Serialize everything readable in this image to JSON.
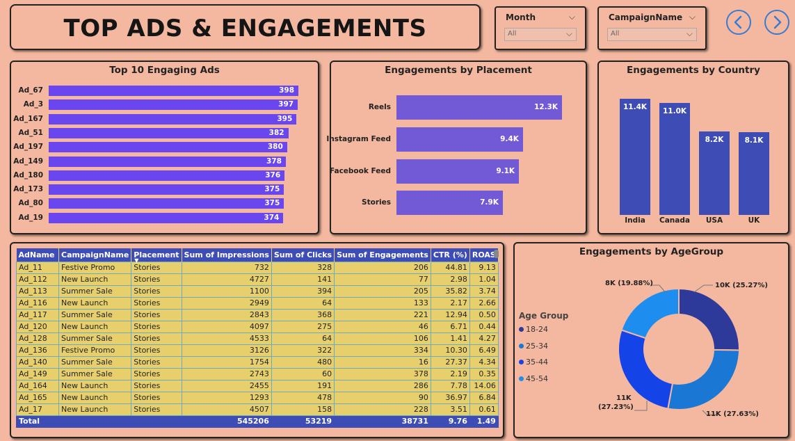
{
  "header": {
    "title": "TOP ADS & ENGAGEMENTS"
  },
  "slicers": {
    "month": {
      "label": "Month",
      "value": "All"
    },
    "campaign": {
      "label": "CampaignName",
      "value": "All"
    }
  },
  "nav": {
    "back_icon": "chevron-left-icon",
    "forward_icon": "chevron-right-icon",
    "accent": "#3a7ad0"
  },
  "top_ads": {
    "title": "Top 10 Engaging Ads",
    "color": "#6a46ee",
    "items": [
      {
        "label": "Ad_67",
        "value": "398"
      },
      {
        "label": "Ad_3",
        "value": "397"
      },
      {
        "label": "Ad_167",
        "value": "395"
      },
      {
        "label": "Ad_51",
        "value": "382"
      },
      {
        "label": "Ad_197",
        "value": "380"
      },
      {
        "label": "Ad_149",
        "value": "378"
      },
      {
        "label": "Ad_180",
        "value": "376"
      },
      {
        "label": "Ad_173",
        "value": "375"
      },
      {
        "label": "Ad_80",
        "value": "375"
      },
      {
        "label": "Ad_19",
        "value": "374"
      }
    ]
  },
  "placement": {
    "title": "Engagements by Placement",
    "items": [
      {
        "label": "Reels",
        "value": "12.3K"
      },
      {
        "label": "Instagram Feed",
        "value": "9.4K"
      },
      {
        "label": "Facebook Feed",
        "value": "9.1K"
      },
      {
        "label": "Stories",
        "value": "7.9K"
      }
    ]
  },
  "country": {
    "title": "Engagements by Country",
    "items": [
      {
        "label": "India",
        "value": "11.4K"
      },
      {
        "label": "Canada",
        "value": "11.0K"
      },
      {
        "label": "USA",
        "value": "8.2K"
      },
      {
        "label": "UK",
        "value": "8.1K"
      }
    ]
  },
  "table": {
    "sort_icon": "sort-down-icon",
    "columns": [
      "AdName",
      "CampaignName",
      "Placement",
      "Sum of Impressions",
      "Sum of Clicks",
      "Sum of Engagements",
      "CTR (%)",
      "ROAS"
    ],
    "rows": [
      [
        "Ad_11",
        "Festive Promo",
        "Stories",
        "732",
        "328",
        "206",
        "44.81",
        "9.13"
      ],
      [
        "Ad_112",
        "New Launch",
        "Stories",
        "4727",
        "141",
        "77",
        "2.98",
        "1.04"
      ],
      [
        "Ad_113",
        "Summer Sale",
        "Stories",
        "1100",
        "394",
        "205",
        "35.82",
        "3.74"
      ],
      [
        "Ad_116",
        "New Launch",
        "Stories",
        "2949",
        "64",
        "133",
        "2.17",
        "2.66"
      ],
      [
        "Ad_117",
        "Summer Sale",
        "Stories",
        "2843",
        "368",
        "221",
        "12.94",
        "0.50"
      ],
      [
        "Ad_120",
        "New Launch",
        "Stories",
        "4097",
        "275",
        "46",
        "6.71",
        "0.44"
      ],
      [
        "Ad_128",
        "Summer Sale",
        "Stories",
        "4533",
        "64",
        "106",
        "1.41",
        "4.27"
      ],
      [
        "Ad_136",
        "Festive Promo",
        "Stories",
        "3126",
        "322",
        "334",
        "10.30",
        "6.49"
      ],
      [
        "Ad_140",
        "Summer Sale",
        "Stories",
        "1754",
        "480",
        "16",
        "27.37",
        "4.34"
      ],
      [
        "Ad_149",
        "Summer Sale",
        "Stories",
        "2743",
        "60",
        "378",
        "2.19",
        "0.35"
      ],
      [
        "Ad_164",
        "New Launch",
        "Stories",
        "2455",
        "191",
        "286",
        "7.78",
        "14.06"
      ],
      [
        "Ad_165",
        "New Launch",
        "Stories",
        "1293",
        "478",
        "90",
        "36.97",
        "6.84"
      ],
      [
        "Ad_17",
        "New Launch",
        "Stories",
        "4507",
        "158",
        "228",
        "3.51",
        "0.61"
      ]
    ],
    "total": [
      "Total",
      "",
      "",
      "545206",
      "53219",
      "38731",
      "9.76",
      "1.49"
    ]
  },
  "age": {
    "title": "Engagements by AgeGroup",
    "legend_title": "Age Group",
    "items": [
      {
        "label": "18-24",
        "color": "#2d3a99"
      },
      {
        "label": "25-34",
        "color": "#1a78d4"
      },
      {
        "label": "35-44",
        "color": "#1443e8"
      },
      {
        "label": "45-54",
        "color": "#1d8ef0"
      }
    ],
    "data_labels": {
      "s1": "10K (25.27%)",
      "s2": "11K (27.63%)",
      "s3a": "11K",
      "s3b": "(27.23%)",
      "s4": "8K (19.88%)"
    }
  },
  "chart_data": [
    {
      "type": "bar",
      "title": "Top 10 Engaging Ads",
      "categories": [
        "Ad_67",
        "Ad_3",
        "Ad_167",
        "Ad_51",
        "Ad_197",
        "Ad_149",
        "Ad_180",
        "Ad_173",
        "Ad_80",
        "Ad_19"
      ],
      "values": [
        398,
        397,
        395,
        382,
        380,
        378,
        376,
        375,
        375,
        374
      ]
    },
    {
      "type": "bar",
      "title": "Engagements by Placement",
      "categories": [
        "Reels",
        "Instagram Feed",
        "Facebook Feed",
        "Stories"
      ],
      "values": [
        12300,
        9400,
        9100,
        7900
      ]
    },
    {
      "type": "bar",
      "title": "Engagements by Country",
      "categories": [
        "India",
        "Canada",
        "USA",
        "UK"
      ],
      "values": [
        11400,
        11000,
        8200,
        8100
      ]
    },
    {
      "type": "pie",
      "title": "Engagements by AgeGroup",
      "categories": [
        "18-24",
        "25-34",
        "35-44",
        "45-54"
      ],
      "values": [
        25.27,
        27.63,
        27.23,
        19.88
      ]
    }
  ]
}
